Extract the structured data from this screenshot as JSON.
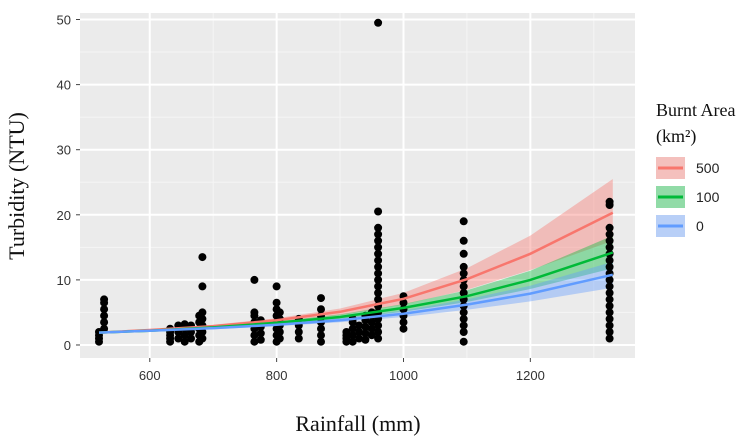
{
  "chart_data": {
    "type": "scatter",
    "xlabel": "Rainfall (mm)",
    "ylabel": "Turbidity (NTU)",
    "xlim": [
      490,
      1365
    ],
    "ylim": [
      -2,
      51
    ],
    "x_ticks": [
      600,
      800,
      1000,
      1200
    ],
    "y_ticks": [
      0,
      10,
      20,
      30,
      40,
      50
    ],
    "grid": true,
    "background": "#ebebeb",
    "legend": {
      "title_line1": "Burnt Area",
      "title_line2": "(km²)",
      "placement": "right",
      "entries": [
        "500",
        "100",
        "0"
      ]
    },
    "series": [
      {
        "name": "500",
        "color": "#f8766d",
        "x": [
          520,
          600,
          700,
          800,
          900,
          1000,
          1100,
          1200,
          1330
        ],
        "fit": [
          1.9,
          2.3,
          2.9,
          3.8,
          5.1,
          7.1,
          10.1,
          14.0,
          20.3
        ],
        "lower": [
          1.8,
          2.2,
          2.7,
          3.5,
          4.6,
          6.2,
          8.5,
          11.5,
          16.0
        ],
        "upper": [
          2.0,
          2.4,
          3.1,
          4.1,
          5.6,
          8.0,
          11.8,
          16.8,
          25.5
        ]
      },
      {
        "name": "100",
        "color": "#00ba38",
        "x": [
          520,
          600,
          700,
          800,
          900,
          1000,
          1100,
          1200,
          1330
        ],
        "fit": [
          1.9,
          2.2,
          2.7,
          3.4,
          4.3,
          5.7,
          7.5,
          10.0,
          14.2
        ],
        "lower": [
          1.8,
          2.1,
          2.6,
          3.2,
          4.0,
          5.1,
          6.6,
          8.6,
          11.8
        ],
        "upper": [
          2.0,
          2.3,
          2.9,
          3.6,
          4.7,
          6.3,
          8.4,
          11.4,
          16.8
        ]
      },
      {
        "name": "0",
        "color": "#619cff",
        "x": [
          520,
          600,
          700,
          800,
          900,
          1000,
          1100,
          1200,
          1330
        ],
        "fit": [
          1.9,
          2.2,
          2.6,
          3.1,
          3.8,
          4.8,
          6.2,
          7.9,
          10.8
        ],
        "lower": [
          1.8,
          2.1,
          2.4,
          2.9,
          3.5,
          4.3,
          5.4,
          6.7,
          8.8
        ],
        "upper": [
          2.0,
          2.3,
          2.8,
          3.3,
          4.1,
          5.3,
          7.0,
          9.1,
          12.8
        ]
      }
    ],
    "points": [
      [
        520,
        0.5
      ],
      [
        520,
        1.0
      ],
      [
        520,
        1.5
      ],
      [
        520,
        2.0
      ],
      [
        528,
        2.5
      ],
      [
        528,
        3.5
      ],
      [
        528,
        4.5
      ],
      [
        528,
        5.5
      ],
      [
        528,
        6.5
      ],
      [
        528,
        7.0
      ],
      [
        632,
        0.5
      ],
      [
        632,
        1.0
      ],
      [
        632,
        1.5
      ],
      [
        632,
        2.0
      ],
      [
        632,
        2.5
      ],
      [
        645,
        1.0
      ],
      [
        645,
        2.0
      ],
      [
        645,
        3.0
      ],
      [
        655,
        0.5
      ],
      [
        655,
        1.5
      ],
      [
        655,
        2.5
      ],
      [
        655,
        3.2
      ],
      [
        665,
        1.0
      ],
      [
        665,
        2.0
      ],
      [
        665,
        3.0
      ],
      [
        678,
        0.5
      ],
      [
        678,
        1.5
      ],
      [
        678,
        2.5
      ],
      [
        678,
        3.5
      ],
      [
        678,
        4.5
      ],
      [
        683,
        1.0
      ],
      [
        683,
        2.0
      ],
      [
        683,
        3.0
      ],
      [
        683,
        4.0
      ],
      [
        683,
        5.0
      ],
      [
        683,
        9.0
      ],
      [
        683,
        13.5
      ],
      [
        765,
        0.5
      ],
      [
        765,
        1.5
      ],
      [
        765,
        2.5
      ],
      [
        765,
        3.5
      ],
      [
        765,
        4.5
      ],
      [
        765,
        5.0
      ],
      [
        765,
        10.0
      ],
      [
        775,
        0.8
      ],
      [
        775,
        1.8
      ],
      [
        775,
        2.8
      ],
      [
        775,
        3.8
      ],
      [
        800,
        0.5
      ],
      [
        800,
        1.5
      ],
      [
        800,
        2.5
      ],
      [
        800,
        3.5
      ],
      [
        800,
        4.5
      ],
      [
        800,
        5.5
      ],
      [
        800,
        6.5
      ],
      [
        800,
        9.0
      ],
      [
        805,
        1.0
      ],
      [
        805,
        2.0
      ],
      [
        805,
        3.0
      ],
      [
        805,
        4.0
      ],
      [
        805,
        5.0
      ],
      [
        835,
        1.0
      ],
      [
        835,
        2.0
      ],
      [
        835,
        3.0
      ],
      [
        835,
        4.0
      ],
      [
        870,
        0.5
      ],
      [
        870,
        1.5
      ],
      [
        870,
        2.5
      ],
      [
        870,
        3.5
      ],
      [
        870,
        4.5
      ],
      [
        870,
        5.5
      ],
      [
        870,
        7.2
      ],
      [
        910,
        0.5
      ],
      [
        910,
        1.0
      ],
      [
        910,
        1.5
      ],
      [
        910,
        2.0
      ],
      [
        920,
        0.5
      ],
      [
        920,
        1.5
      ],
      [
        920,
        2.5
      ],
      [
        920,
        3.5
      ],
      [
        920,
        4.0
      ],
      [
        930,
        1.0
      ],
      [
        930,
        2.0
      ],
      [
        930,
        3.0
      ],
      [
        940,
        0.8
      ],
      [
        940,
        1.8
      ],
      [
        940,
        2.8
      ],
      [
        940,
        3.8
      ],
      [
        940,
        4.5
      ],
      [
        950,
        1.5
      ],
      [
        950,
        2.5
      ],
      [
        950,
        3.5
      ],
      [
        950,
        4.5
      ],
      [
        950,
        5.0
      ],
      [
        960,
        1.0
      ],
      [
        960,
        2.0
      ],
      [
        960,
        3.0
      ],
      [
        960,
        4.0
      ],
      [
        960,
        5.0
      ],
      [
        960,
        6.0
      ],
      [
        960,
        7.0
      ],
      [
        960,
        8.0
      ],
      [
        960,
        9.0
      ],
      [
        960,
        10.0
      ],
      [
        960,
        11.0
      ],
      [
        960,
        12.0
      ],
      [
        960,
        13.0
      ],
      [
        960,
        14.0
      ],
      [
        960,
        15.0
      ],
      [
        960,
        16.0
      ],
      [
        960,
        17.0
      ],
      [
        960,
        18.0
      ],
      [
        960,
        20.5
      ],
      [
        960,
        49.5
      ],
      [
        1000,
        2.5
      ],
      [
        1000,
        3.5
      ],
      [
        1000,
        4.5
      ],
      [
        1000,
        5.5
      ],
      [
        1000,
        6.5
      ],
      [
        1000,
        7.5
      ],
      [
        1095,
        0.5
      ],
      [
        1095,
        2.0
      ],
      [
        1095,
        3.0
      ],
      [
        1095,
        4.0
      ],
      [
        1095,
        5.0
      ],
      [
        1095,
        6.0
      ],
      [
        1095,
        7.0
      ],
      [
        1095,
        8.0
      ],
      [
        1095,
        9.0
      ],
      [
        1095,
        10.0
      ],
      [
        1095,
        11.0
      ],
      [
        1095,
        12.0
      ],
      [
        1095,
        14.0
      ],
      [
        1095,
        16.0
      ],
      [
        1095,
        19.0
      ],
      [
        1325,
        1.0
      ],
      [
        1325,
        2.0
      ],
      [
        1325,
        3.0
      ],
      [
        1325,
        4.0
      ],
      [
        1325,
        5.0
      ],
      [
        1325,
        6.0
      ],
      [
        1325,
        7.0
      ],
      [
        1325,
        8.0
      ],
      [
        1325,
        9.0
      ],
      [
        1325,
        10.0
      ],
      [
        1325,
        11.0
      ],
      [
        1325,
        12.0
      ],
      [
        1325,
        13.0
      ],
      [
        1325,
        14.0
      ],
      [
        1325,
        15.0
      ],
      [
        1325,
        16.0
      ],
      [
        1325,
        17.0
      ],
      [
        1325,
        18.0
      ],
      [
        1325,
        21.5
      ],
      [
        1325,
        22.0
      ]
    ]
  }
}
